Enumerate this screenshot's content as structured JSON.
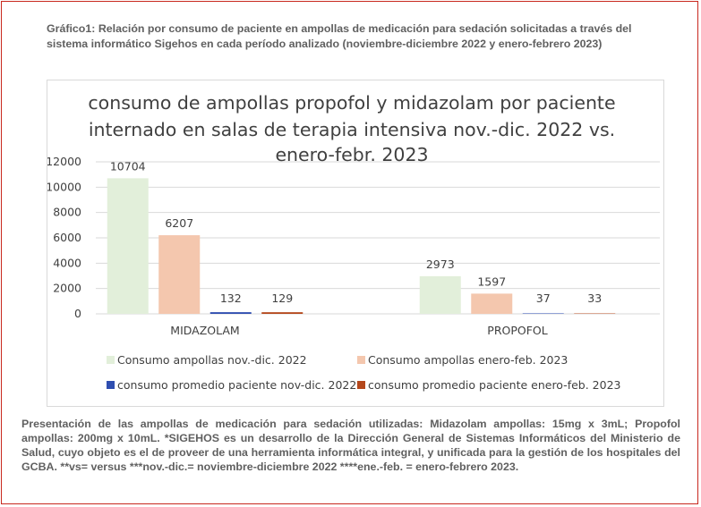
{
  "caption": "Gráfico1: Relación por consumo de paciente en ampollas de medicación para sedación solicitadas a través del sistema informático Sigehos en cada período analizado (noviembre-diciembre 2022 y enero-febrero 2023)",
  "footnote": "Presentación de las ampollas de medicación para sedación utilizadas: Midazolam ampollas: 15mg x 3mL; Propofol ampollas: 200mg x 10mL. *SIGEHOS es un desarrollo de la Dirección General de Sistemas Informáticos del Ministerio de Salud, cuyo objeto es el de proveer de una herramienta informática integral, y unificada para la gestión de los hospitales del GCBA. **vs= versus ***nov.-dic.= noviembre-diciembre 2022 ****ene.-feb. = enero-febrero 2023.",
  "chart_data": {
    "type": "bar",
    "title_lines": [
      "consumo de ampollas propofol y midazolam por paciente",
      "internado en salas de terapia intensiva nov.-dic. 2022 vs.",
      "enero-febr. 2023"
    ],
    "categories": [
      "MIDAZOLAM",
      "PROPOFOL"
    ],
    "series": [
      {
        "name": "Consumo ampollas nov.-dic. 2022",
        "color": "#e2efda",
        "values": [
          10704,
          2973
        ]
      },
      {
        "name": "Consumo ampollas enero-feb. 2023",
        "color": "#f4c7ae",
        "values": [
          6207,
          1597
        ]
      },
      {
        "name": "consumo promedio paciente nov-dic. 2022",
        "color": "#2f4eb0",
        "values": [
          132,
          37
        ]
      },
      {
        "name": "consumo promedio paciente enero-feb. 2023",
        "color": "#b4471b",
        "values": [
          129,
          33
        ]
      }
    ],
    "ylim": [
      0,
      12000
    ],
    "yticks": [
      "0",
      "2000",
      "4000",
      "6000",
      "8000",
      "10000",
      "12000"
    ],
    "grid": true,
    "legend_position": "bottom"
  }
}
